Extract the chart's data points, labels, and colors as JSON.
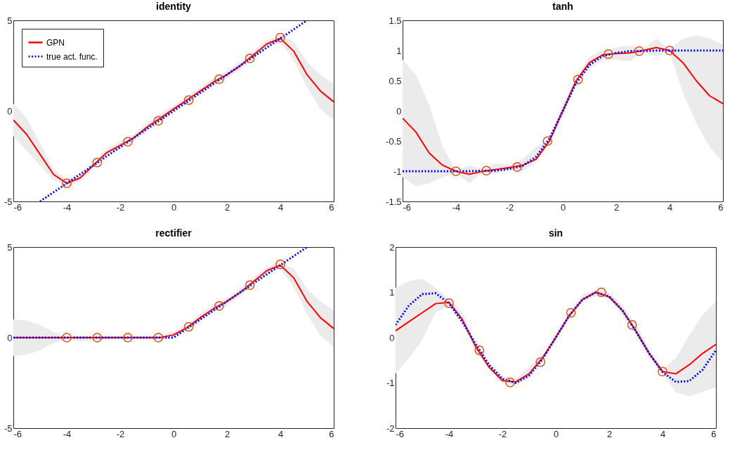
{
  "chart_data": [
    {
      "type": "line",
      "title": "identity",
      "xlim": [
        -6,
        6
      ],
      "xticks": [
        -6,
        -4,
        -2,
        0,
        2,
        4,
        6
      ],
      "ylim": [
        -5,
        5
      ],
      "yticks": [
        -5,
        0,
        5
      ],
      "grid": false,
      "legend": "top left",
      "x": [
        -6,
        -5.5,
        -5,
        -4.5,
        -4,
        -3.5,
        -3,
        -2.5,
        -2,
        -1.5,
        -1,
        -0.5,
        0,
        0.5,
        1,
        1.5,
        2,
        2.5,
        3,
        3.5,
        4,
        4.5,
        5,
        5.5,
        6
      ],
      "series": [
        {
          "name": "GPN",
          "color": "#ff0000",
          "line_style": "solid",
          "values": [
            -0.5,
            -1.3,
            -2.4,
            -3.5,
            -4.0,
            -3.7,
            -3.0,
            -2.3,
            -1.9,
            -1.5,
            -0.9,
            -0.4,
            0.1,
            0.6,
            1.1,
            1.6,
            2.0,
            2.5,
            3.1,
            3.7,
            4.0,
            3.3,
            2.0,
            1.1,
            0.5
          ],
          "lower": [
            -1.4,
            -2.2,
            -3.0,
            -3.8,
            -4.2,
            -3.9,
            -3.2,
            -2.5,
            -2.1,
            -1.7,
            -1.1,
            -0.6,
            -0.1,
            0.4,
            0.9,
            1.4,
            1.8,
            2.3,
            2.9,
            3.5,
            3.8,
            2.8,
            1.3,
            0.1,
            -0.5
          ],
          "upper": [
            0.4,
            -0.4,
            -1.8,
            -3.2,
            -3.8,
            -3.5,
            -2.8,
            -2.1,
            -1.7,
            -1.3,
            -0.7,
            -0.2,
            0.3,
            0.8,
            1.3,
            1.8,
            2.2,
            2.7,
            3.3,
            3.9,
            4.2,
            3.8,
            2.7,
            2.0,
            1.5
          ]
        },
        {
          "name": "true act. func.",
          "color": "#0000ff",
          "line_style": "dotted",
          "x": [
            -5,
            5
          ],
          "values": [
            -5,
            5
          ]
        },
        {
          "type": "scatter",
          "color": "#d95319",
          "marker": "circle",
          "x": [
            -4,
            -2.86,
            -1.71,
            -0.57,
            0.57,
            1.71,
            2.86,
            4
          ],
          "values": [
            -4.0,
            -2.85,
            -1.7,
            -0.55,
            0.6,
            1.75,
            2.9,
            4.05
          ]
        }
      ]
    },
    {
      "type": "line",
      "title": "tanh",
      "xlim": [
        -6,
        6
      ],
      "xticks": [
        -6,
        -4,
        -2,
        0,
        2,
        4,
        6
      ],
      "ylim": [
        -1.5,
        1.5
      ],
      "yticks": [
        -1.5,
        -1,
        -0.5,
        0,
        0.5,
        1,
        1.5
      ],
      "grid": false,
      "x": [
        -6,
        -5.5,
        -5,
        -4.5,
        -4,
        -3.5,
        -3,
        -2.5,
        -2,
        -1.5,
        -1,
        -0.5,
        0,
        0.5,
        1,
        1.5,
        2,
        2.5,
        3,
        3.5,
        4,
        4.5,
        5,
        5.5,
        6
      ],
      "series": [
        {
          "color": "#ff0000",
          "line_style": "solid",
          "values": [
            -0.12,
            -0.35,
            -0.7,
            -0.9,
            -1.0,
            -1.05,
            -1.0,
            -0.97,
            -0.94,
            -0.9,
            -0.8,
            -0.5,
            0.0,
            0.5,
            0.8,
            0.93,
            0.95,
            0.96,
            1.0,
            1.05,
            1.0,
            0.8,
            0.5,
            0.25,
            0.12
          ],
          "lower": [
            -1.1,
            -1.25,
            -1.2,
            -1.1,
            -1.02,
            -1.2,
            -1.02,
            -1.05,
            -0.97,
            -1.0,
            -0.85,
            -0.53,
            -0.1,
            0.48,
            0.7,
            0.85,
            0.85,
            0.82,
            0.98,
            0.9,
            0.98,
            0.3,
            -0.2,
            -0.6,
            -0.85
          ],
          "upper": [
            0.85,
            0.6,
            0.1,
            -0.6,
            -0.98,
            -0.9,
            -0.96,
            -0.87,
            -0.9,
            -0.8,
            -0.6,
            -0.47,
            0.1,
            0.55,
            0.9,
            1.0,
            1.05,
            1.08,
            1.02,
            1.2,
            1.02,
            1.2,
            1.25,
            1.2,
            1.1
          ]
        },
        {
          "color": "#0000ff",
          "line_style": "dotted",
          "values": [
            -1.0,
            -1.0,
            -1.0,
            -1.0,
            -1.0,
            -1.0,
            -0.99,
            -0.99,
            -0.96,
            -0.91,
            -0.76,
            -0.46,
            0,
            0.46,
            0.76,
            0.91,
            0.96,
            0.99,
            0.99,
            1.0,
            1.0,
            1.0,
            1.0,
            1.0,
            1.0
          ]
        },
        {
          "type": "scatter",
          "color": "#d95319",
          "marker": "circle",
          "x": [
            -4,
            -2.86,
            -1.71,
            -0.57,
            0.57,
            1.71,
            2.86,
            4
          ],
          "values": [
            -1.0,
            -0.99,
            -0.93,
            -0.5,
            0.52,
            0.94,
            0.99,
            1.0
          ]
        }
      ]
    },
    {
      "type": "line",
      "title": "rectifier",
      "xlim": [
        -6,
        6
      ],
      "xticks": [
        -6,
        -4,
        -2,
        0,
        2,
        4,
        6
      ],
      "ylim": [
        -5,
        5
      ],
      "yticks": [
        -5,
        0,
        5
      ],
      "grid": false,
      "x": [
        -6,
        -5.5,
        -5,
        -4.5,
        -4,
        -3.5,
        -3,
        -2.5,
        -2,
        -1.5,
        -1,
        -0.5,
        0,
        0.5,
        1,
        1.5,
        2,
        2.5,
        3,
        3.5,
        4,
        4.5,
        5,
        5.5,
        6
      ],
      "series": [
        {
          "color": "#ff0000",
          "line_style": "solid",
          "values": [
            0,
            0,
            0,
            0,
            0,
            0,
            0,
            0,
            0,
            0,
            0,
            0,
            0.15,
            0.55,
            1.1,
            1.6,
            2.0,
            2.5,
            3.1,
            3.7,
            4.0,
            3.3,
            2.0,
            1.1,
            0.5
          ],
          "lower": [
            -1.0,
            -0.95,
            -0.7,
            -0.3,
            -0.05,
            -0.2,
            -0.1,
            -0.1,
            -0.1,
            -0.1,
            -0.1,
            -0.1,
            -0.05,
            0.4,
            0.9,
            1.4,
            1.8,
            2.3,
            2.9,
            3.5,
            3.8,
            2.8,
            1.3,
            0.1,
            -0.5
          ],
          "upper": [
            1.0,
            0.95,
            0.7,
            0.3,
            0.05,
            0.1,
            0.1,
            0.1,
            0.1,
            0.1,
            0.1,
            0.1,
            0.35,
            0.7,
            1.3,
            1.8,
            2.2,
            2.7,
            3.3,
            3.9,
            4.2,
            3.8,
            2.7,
            2.0,
            1.5
          ]
        },
        {
          "color": "#0000ff",
          "line_style": "dotted",
          "x": [
            -6,
            0,
            5
          ],
          "values": [
            0,
            0,
            5
          ]
        },
        {
          "type": "scatter",
          "color": "#d95319",
          "marker": "circle",
          "x": [
            -4,
            -2.86,
            -1.71,
            -0.57,
            0.57,
            1.71,
            2.86,
            4
          ],
          "values": [
            0,
            0,
            0,
            0,
            0.6,
            1.75,
            2.9,
            4.05
          ]
        }
      ]
    },
    {
      "type": "line",
      "title": "sin",
      "xlim": [
        -6,
        6
      ],
      "xticks": [
        -6,
        -4,
        -2,
        0,
        2,
        4,
        6
      ],
      "ylim": [
        -2,
        2
      ],
      "yticks": [
        -2,
        -1,
        0,
        1,
        2
      ],
      "grid": false,
      "x": [
        -6,
        -5.5,
        -5,
        -4.5,
        -4,
        -3.5,
        -3,
        -2.5,
        -2,
        -1.5,
        -1,
        -0.5,
        0,
        0.5,
        1,
        1.5,
        2,
        2.5,
        3,
        3.5,
        4,
        4.5,
        5,
        5.5,
        6
      ],
      "series": [
        {
          "color": "#ff0000",
          "line_style": "solid",
          "values": [
            0.15,
            0.35,
            0.55,
            0.75,
            0.78,
            0.4,
            -0.2,
            -0.65,
            -0.95,
            -0.98,
            -0.8,
            -0.45,
            0.0,
            0.48,
            0.84,
            1.0,
            0.9,
            0.6,
            0.15,
            -0.35,
            -0.75,
            -0.8,
            -0.6,
            -0.35,
            -0.15
          ],
          "lower": [
            -0.8,
            -0.45,
            -0.05,
            0.55,
            0.7,
            0.3,
            -0.3,
            -0.7,
            -1.0,
            -1.05,
            -0.9,
            -0.5,
            -0.05,
            0.45,
            0.78,
            0.92,
            0.85,
            0.5,
            0.05,
            -0.45,
            -0.8,
            -1.2,
            -1.3,
            -1.2,
            -1.1
          ],
          "upper": [
            1.1,
            1.25,
            1.3,
            1.1,
            0.85,
            0.55,
            -0.1,
            -0.55,
            -0.85,
            -0.92,
            -0.65,
            -0.4,
            0.1,
            0.55,
            0.95,
            1.05,
            1.0,
            0.7,
            0.3,
            -0.25,
            -0.7,
            -0.45,
            0.05,
            0.5,
            0.8
          ]
        },
        {
          "color": "#0000ff",
          "line_style": "dotted",
          "values": [
            0.28,
            0.71,
            0.96,
            0.98,
            0.76,
            0.35,
            -0.14,
            -0.6,
            -0.91,
            -1.0,
            -0.84,
            -0.48,
            0,
            0.48,
            0.84,
            1.0,
            0.91,
            0.6,
            0.14,
            -0.35,
            -0.76,
            -0.98,
            -0.96,
            -0.71,
            -0.28
          ]
        },
        {
          "type": "scatter",
          "color": "#d95319",
          "marker": "circle",
          "x": [
            -4,
            -2.86,
            -1.71,
            -0.57,
            0.57,
            1.71,
            2.86,
            4
          ],
          "values": [
            0.76,
            -0.28,
            -0.99,
            -0.54,
            0.55,
            1.0,
            0.28,
            -0.75
          ]
        }
      ]
    }
  ]
}
